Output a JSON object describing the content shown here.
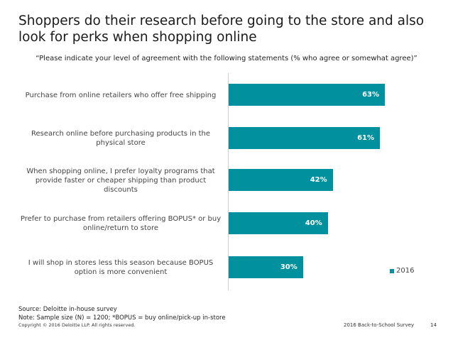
{
  "title": "Shoppers do their research before going to the store and also look for perks when shopping online",
  "subtitle": "“Please indicate your level of agreement with the following statements (% who agree or somewhat agree)”",
  "colors": {
    "bar": "#00909e",
    "text": "#444444"
  },
  "chart_data": {
    "type": "bar",
    "orientation": "horizontal",
    "categories": [
      "Purchase from online retailers who offer free shipping",
      "Research online before purchasing products in the physical store",
      "When shopping online, I prefer loyalty programs that provide faster or cheaper shipping than product discounts",
      "Prefer to purchase from retailers offering BOPUS* or buy online/return to store",
      "I will shop in stores less this season because BOPUS option is more convenient"
    ],
    "series": [
      {
        "name": "2016",
        "values": [
          63,
          61,
          42,
          40,
          30
        ],
        "labels": [
          "63%",
          "61%",
          "42%",
          "40%",
          "30%"
        ]
      }
    ],
    "xlim": [
      0,
      100
    ],
    "legend_position": "bottom-right",
    "grid": false
  },
  "footer": {
    "source": "Source: Deloitte in-house survey",
    "note": "Note:  Sample size (N) = 1200; *BOPUS = buy online/pick-up in-store",
    "copyright": "Copyright © 2016 Deloitte LLP. All rights reserved.",
    "survey": "2016 Back-to-School Survey",
    "page": "14"
  }
}
